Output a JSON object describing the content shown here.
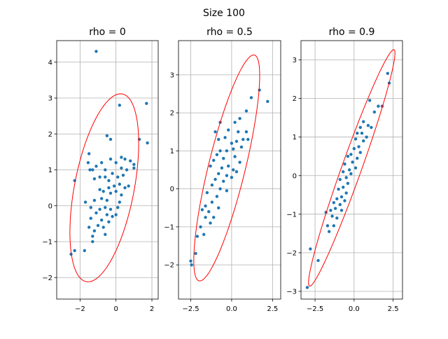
{
  "figure": {
    "suptitle": "Size 100"
  },
  "style": {
    "point_color": "#1f77b4",
    "ellipse_color": "#ff0000",
    "grid_color": "#b0b0b0",
    "axis_color": "#000000"
  },
  "chart_data": [
    {
      "type": "scatter",
      "title": "rho = 0",
      "xlabel": "",
      "ylabel": "",
      "xlim": [
        -3.3,
        2.35
      ],
      "ylim": [
        -2.6,
        4.6
      ],
      "xticks": [
        -2,
        0,
        2
      ],
      "yticks": [
        -2,
        -1,
        0,
        1,
        2,
        3,
        4
      ],
      "grid": true,
      "points": [
        [
          -1.1,
          4.3
        ],
        [
          0.2,
          2.8
        ],
        [
          1.7,
          2.85
        ],
        [
          -0.5,
          1.95
        ],
        [
          -0.3,
          1.85
        ],
        [
          1.3,
          1.85
        ],
        [
          1.75,
          1.75
        ],
        [
          -1.5,
          1.45
        ],
        [
          -1.55,
          1.2
        ],
        [
          -1.45,
          1.0
        ],
        [
          -1.3,
          1.0
        ],
        [
          -1.1,
          1.1
        ],
        [
          -0.8,
          1.2
        ],
        [
          -0.6,
          1.0
        ],
        [
          -0.3,
          1.3
        ],
        [
          0.0,
          1.2
        ],
        [
          0.3,
          1.35
        ],
        [
          0.5,
          1.3
        ],
        [
          0.8,
          1.25
        ],
        [
          1.0,
          1.15
        ],
        [
          1.0,
          1.05
        ],
        [
          0.6,
          1.0
        ],
        [
          0.3,
          1.05
        ],
        [
          -0.2,
          0.9
        ],
        [
          -0.6,
          0.8
        ],
        [
          -0.9,
          0.8
        ],
        [
          -1.2,
          0.75
        ],
        [
          -0.4,
          0.7
        ],
        [
          0.1,
          0.8
        ],
        [
          0.4,
          0.85
        ],
        [
          0.2,
          0.6
        ],
        [
          -0.1,
          0.55
        ],
        [
          -0.4,
          0.5
        ],
        [
          0.5,
          0.5
        ],
        [
          0.7,
          0.55
        ],
        [
          0.0,
          0.4
        ],
        [
          -0.3,
          0.35
        ],
        [
          0.3,
          0.3
        ],
        [
          -0.7,
          0.4
        ],
        [
          -0.9,
          0.45
        ],
        [
          -2.3,
          0.7
        ],
        [
          -0.8,
          0.2
        ],
        [
          -0.5,
          0.15
        ],
        [
          0.2,
          0.1
        ],
        [
          -1.2,
          0.15
        ],
        [
          -1.7,
          0.1
        ],
        [
          -1.4,
          -0.05
        ],
        [
          -0.9,
          -0.1
        ],
        [
          -0.6,
          -0.05
        ],
        [
          -0.3,
          -0.1
        ],
        [
          0.1,
          -0.05
        ],
        [
          -0.5,
          -0.25
        ],
        [
          -0.2,
          -0.3
        ],
        [
          0.0,
          -0.25
        ],
        [
          -1.1,
          -0.2
        ],
        [
          -1.4,
          -0.35
        ],
        [
          -0.8,
          -0.4
        ],
        [
          -0.4,
          -0.45
        ],
        [
          -1.0,
          -0.55
        ],
        [
          -0.7,
          -0.6
        ],
        [
          -1.5,
          -0.6
        ],
        [
          -1.2,
          -0.7
        ],
        [
          -0.6,
          -0.8
        ],
        [
          -1.3,
          -0.85
        ],
        [
          -1.3,
          -1.0
        ],
        [
          -2.3,
          -1.25
        ],
        [
          -1.75,
          -1.25
        ],
        [
          -2.5,
          -1.35
        ]
      ],
      "ellipse": {
        "center": [
          -0.65,
          0.5
        ],
        "semi_major": 2.85,
        "semi_minor": 1.55,
        "angle_deg": 62
      }
    },
    {
      "type": "scatter",
      "title": "rho = 0.5",
      "xlabel": "",
      "ylabel": "",
      "xlim": [
        -3.25,
        3.0
      ],
      "ylim": [
        -2.9,
        3.9
      ],
      "xticks": [
        -2.5,
        0.0,
        2.5
      ],
      "yticks": [
        -2,
        -1,
        0,
        1,
        2,
        3
      ],
      "grid": true,
      "points": [
        [
          1.7,
          2.6
        ],
        [
          2.2,
          2.3
        ],
        [
          1.2,
          2.4
        ],
        [
          0.9,
          2.05
        ],
        [
          0.5,
          1.85
        ],
        [
          0.2,
          1.75
        ],
        [
          -0.7,
          1.75
        ],
        [
          -0.2,
          1.55
        ],
        [
          0.4,
          1.5
        ],
        [
          0.9,
          1.5
        ],
        [
          -1.0,
          1.5
        ],
        [
          -0.8,
          1.3
        ],
        [
          -0.4,
          1.35
        ],
        [
          0.0,
          1.2
        ],
        [
          0.3,
          1.25
        ],
        [
          0.7,
          1.3
        ],
        [
          1.0,
          1.3
        ],
        [
          0.6,
          1.1
        ],
        [
          0.1,
          1.05
        ],
        [
          -0.3,
          1.0
        ],
        [
          -0.7,
          1.0
        ],
        [
          -0.9,
          0.9
        ],
        [
          -1.1,
          0.75
        ],
        [
          -0.5,
          0.8
        ],
        [
          0.2,
          0.85
        ],
        [
          0.5,
          0.7
        ],
        [
          -0.2,
          0.6
        ],
        [
          -0.6,
          0.55
        ],
        [
          -1.3,
          0.6
        ],
        [
          0.1,
          0.5
        ],
        [
          0.3,
          0.45
        ],
        [
          -0.3,
          0.35
        ],
        [
          -0.8,
          0.4
        ],
        [
          -1.0,
          0.25
        ],
        [
          0.0,
          0.3
        ],
        [
          -0.5,
          0.2
        ],
        [
          -1.2,
          0.1
        ],
        [
          -0.7,
          0.0
        ],
        [
          -0.3,
          -0.05
        ],
        [
          -1.5,
          -0.1
        ],
        [
          -0.9,
          -0.2
        ],
        [
          -1.2,
          -0.35
        ],
        [
          -1.6,
          -0.45
        ],
        [
          -0.8,
          -0.5
        ],
        [
          -1.4,
          -0.6
        ],
        [
          -1.8,
          -0.55
        ],
        [
          -1.1,
          -0.75
        ],
        [
          -1.6,
          -0.75
        ],
        [
          -1.3,
          -0.9
        ],
        [
          -1.9,
          -1.0
        ],
        [
          -1.7,
          -1.2
        ],
        [
          -2.1,
          -1.25
        ],
        [
          -2.2,
          -1.7
        ],
        [
          -2.5,
          -1.9
        ],
        [
          -2.45,
          -2.0
        ]
      ],
      "ellipse": {
        "center": [
          -0.3,
          0.55
        ],
        "semi_major": 3.45,
        "semi_minor": 1.0,
        "angle_deg": 58
      }
    },
    {
      "type": "scatter",
      "title": "rho = 0.9",
      "xlabel": "",
      "ylabel": "",
      "xlim": [
        -3.4,
        3.1
      ],
      "ylim": [
        -3.2,
        3.5
      ],
      "xticks": [
        -2.5,
        0.0,
        2.5
      ],
      "yticks": [
        -3,
        -2,
        -1,
        0,
        1,
        2,
        3
      ],
      "grid": true,
      "points": [
        [
          2.15,
          2.65
        ],
        [
          2.25,
          2.4
        ],
        [
          1.0,
          1.95
        ],
        [
          1.55,
          1.8
        ],
        [
          1.8,
          1.8
        ],
        [
          1.3,
          1.65
        ],
        [
          0.6,
          1.4
        ],
        [
          0.9,
          1.3
        ],
        [
          1.1,
          1.25
        ],
        [
          0.4,
          1.25
        ],
        [
          0.2,
          1.1
        ],
        [
          0.5,
          1.1
        ],
        [
          0.8,
          1.0
        ],
        [
          0.1,
          0.95
        ],
        [
          0.6,
          0.9
        ],
        [
          0.3,
          0.75
        ],
        [
          0.0,
          0.7
        ],
        [
          0.4,
          0.6
        ],
        [
          -0.2,
          0.55
        ],
        [
          -0.4,
          0.5
        ],
        [
          0.2,
          0.45
        ],
        [
          -0.1,
          0.35
        ],
        [
          -0.6,
          0.3
        ],
        [
          0.1,
          0.2
        ],
        [
          -0.3,
          0.15
        ],
        [
          -0.7,
          0.1
        ],
        [
          -0.2,
          0.05
        ],
        [
          -0.5,
          -0.05
        ],
        [
          -0.9,
          -0.1
        ],
        [
          -0.4,
          -0.2
        ],
        [
          -0.7,
          -0.3
        ],
        [
          -1.0,
          -0.35
        ],
        [
          -0.5,
          -0.45
        ],
        [
          -0.8,
          -0.55
        ],
        [
          -1.1,
          -0.6
        ],
        [
          -0.6,
          -0.65
        ],
        [
          -0.9,
          -0.75
        ],
        [
          -1.3,
          -0.7
        ],
        [
          -1.2,
          -0.85
        ],
        [
          -0.8,
          -0.9
        ],
        [
          -1.5,
          -0.9
        ],
        [
          -1.4,
          -1.05
        ],
        [
          -1.1,
          -1.1
        ],
        [
          -1.8,
          -0.95
        ],
        [
          -1.7,
          -1.3
        ],
        [
          -1.3,
          -1.3
        ],
        [
          -1.6,
          -1.45
        ],
        [
          -2.8,
          -1.9
        ],
        [
          -2.3,
          -2.2
        ],
        [
          -3.0,
          -2.9
        ]
      ],
      "ellipse": {
        "center": [
          -0.15,
          0.2
        ],
        "semi_major": 4.1,
        "semi_minor": 0.5,
        "angle_deg": 48
      }
    }
  ]
}
